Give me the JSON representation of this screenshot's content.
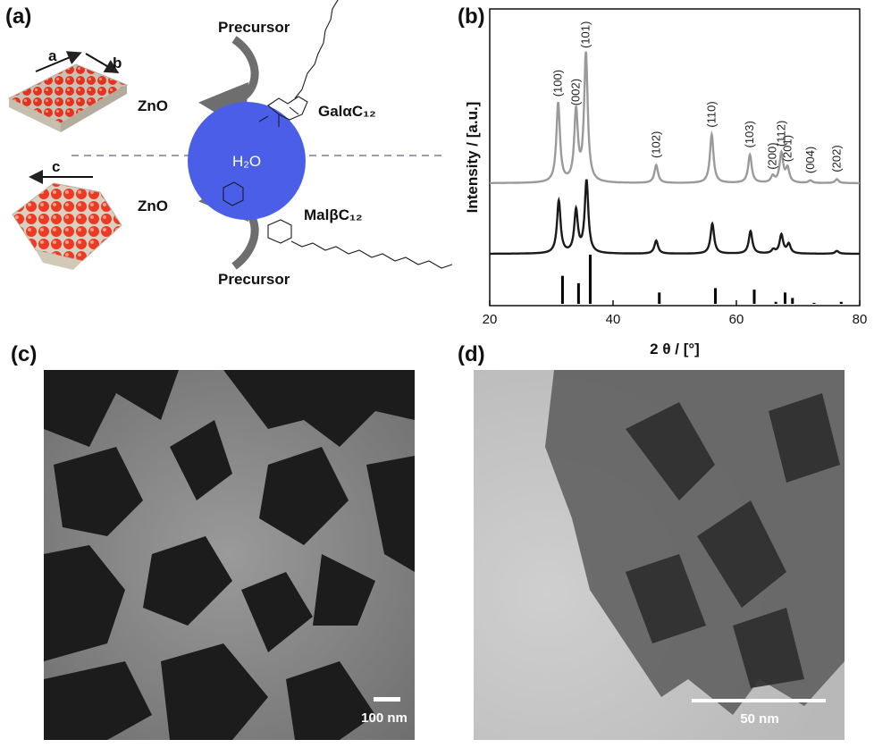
{
  "panels": {
    "a": {
      "label": "(a)",
      "axis_a": "a",
      "axis_b": "b",
      "axis_c": "c",
      "precursor_top": "Precursor",
      "precursor_bottom": "Precursor",
      "zno_top": "ZnO",
      "zno_bottom": "ZnO",
      "droplet": "H₂O",
      "surfactant_top": "GalαC₁₂",
      "surfactant_bottom": "MalβC₁₂",
      "droplet_color": "#4a5ee8"
    },
    "b": {
      "label": "(b)"
    },
    "c": {
      "label": "(c)",
      "scale_bar": "100 nm"
    },
    "d": {
      "label": "(d)",
      "scale_bar": "50 nm"
    }
  },
  "chart_data": {
    "type": "line",
    "xlabel": "2 θ / [°]",
    "ylabel": "Intensity / [a.u.]",
    "xlim": [
      20,
      80
    ],
    "x_ticks": [
      20,
      40,
      60,
      80
    ],
    "y_ticks": "none",
    "colors": {
      "upper": "#9a9a9a",
      "lower": "#1a1a1a",
      "reference": "#000000"
    },
    "series": [
      {
        "trace": "upper",
        "peaks": [
          {
            "x": 31.1,
            "height": 0.62,
            "label": "(100)"
          },
          {
            "x": 34.0,
            "height": 0.55,
            "label": "(002)"
          },
          {
            "x": 35.6,
            "height": 1.0,
            "label": "(101)"
          },
          {
            "x": 47.0,
            "height": 0.14,
            "label": "(102)"
          },
          {
            "x": 56.0,
            "height": 0.38,
            "label": "(110)"
          },
          {
            "x": 62.2,
            "height": 0.22,
            "label": "(103)"
          },
          {
            "x": 65.9,
            "height": 0.05,
            "label": "(200)"
          },
          {
            "x": 67.3,
            "height": 0.23,
            "label": "(112)"
          },
          {
            "x": 68.3,
            "height": 0.11,
            "label": "(201)"
          },
          {
            "x": 72.0,
            "height": 0.02,
            "label": "(004)"
          },
          {
            "x": 76.3,
            "height": 0.03,
            "label": "(202)"
          }
        ]
      },
      {
        "trace": "lower",
        "peaks": [
          {
            "x": 31.2,
            "height": 0.56
          },
          {
            "x": 34.0,
            "height": 0.45
          },
          {
            "x": 35.7,
            "height": 0.77
          },
          {
            "x": 47.0,
            "height": 0.14
          },
          {
            "x": 56.1,
            "height": 0.32
          },
          {
            "x": 62.3,
            "height": 0.24
          },
          {
            "x": 66.0,
            "height": 0.04
          },
          {
            "x": 67.3,
            "height": 0.2
          },
          {
            "x": 68.5,
            "height": 0.1
          },
          {
            "x": 76.3,
            "height": 0.03
          }
        ]
      },
      {
        "trace": "reference",
        "type": "stick",
        "peaks": [
          {
            "x": 31.8,
            "height": 0.57
          },
          {
            "x": 34.4,
            "height": 0.42
          },
          {
            "x": 36.3,
            "height": 1.0
          },
          {
            "x": 47.5,
            "height": 0.23
          },
          {
            "x": 56.6,
            "height": 0.32
          },
          {
            "x": 62.9,
            "height": 0.29
          },
          {
            "x": 66.4,
            "height": 0.04
          },
          {
            "x": 67.9,
            "height": 0.23
          },
          {
            "x": 69.1,
            "height": 0.12
          },
          {
            "x": 72.6,
            "height": 0.02
          },
          {
            "x": 77.0,
            "height": 0.04
          }
        ]
      }
    ]
  }
}
